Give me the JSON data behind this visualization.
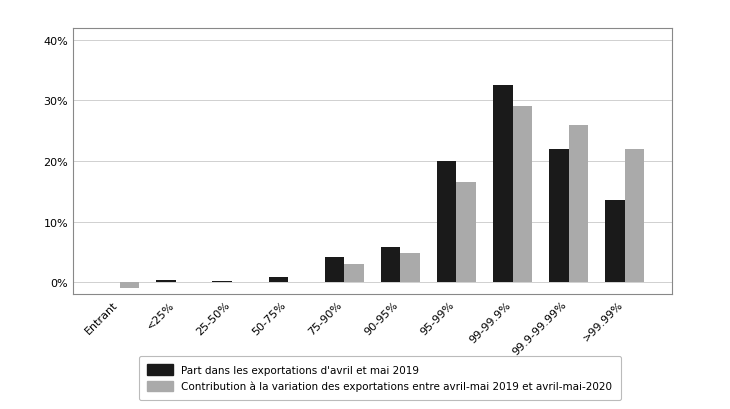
{
  "categories": [
    "Entrant",
    "<25%",
    "25-50%",
    "50-75%",
    "75-90%",
    "90-95%",
    "95-99%",
    "99-99.9%",
    "99.9-99.99%",
    ">99.99%"
  ],
  "series1_label": "Part dans les exportations d'avril et mai 2019",
  "series2_label": "Contribution à la variation des exportations entre avril-mai 2019 et avril-mai-2020",
  "series1_values": [
    0.0,
    0.3,
    0.2,
    0.8,
    4.2,
    5.8,
    20.0,
    32.5,
    22.0,
    13.5
  ],
  "series2_values": [
    -1.0,
    0.0,
    0.0,
    0.0,
    3.0,
    4.8,
    16.5,
    29.0,
    26.0,
    22.0
  ],
  "series1_color": "#1a1a1a",
  "series2_color": "#aaaaaa",
  "ylim": [
    -2,
    42
  ],
  "yticks": [
    0,
    10,
    20,
    30,
    40
  ],
  "ytick_labels": [
    "0%",
    "10%",
    "20%",
    "30%",
    "40%"
  ],
  "bar_width": 0.35,
  "legend_fontsize": 7.5,
  "tick_fontsize": 8,
  "fig_width": 7.3,
  "fig_height": 4.1,
  "dpi": 100
}
